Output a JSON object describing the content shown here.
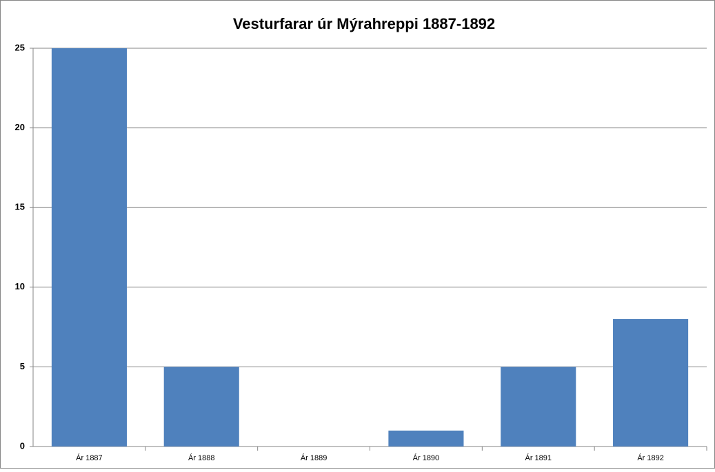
{
  "chart_data": {
    "type": "bar",
    "title": "Vesturfarar úr Mýrahreppi 1887-1892",
    "categories": [
      "Ár 1887",
      "Ár 1888",
      "Ár 1889",
      "Ár 1890",
      "Ár 1891",
      "Ár 1892"
    ],
    "values": [
      25,
      5,
      0,
      1,
      5,
      8
    ],
    "color": "#4f81bd",
    "ylim": [
      0,
      25
    ],
    "yticks": [
      0,
      5,
      10,
      15,
      20,
      25
    ],
    "grid": true
  }
}
